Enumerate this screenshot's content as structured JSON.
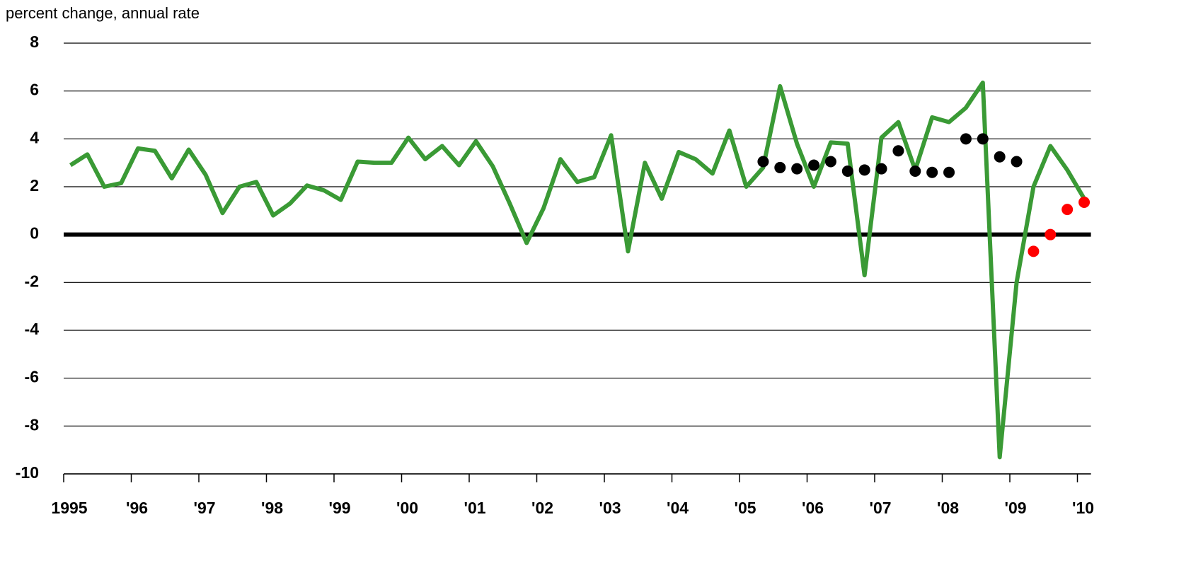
{
  "chart_data": {
    "type": "line",
    "title": "percent change, annual rate",
    "xlim": [
      1995,
      2010.2
    ],
    "ylim": [
      -10,
      8
    ],
    "yticks": [
      -10,
      -8,
      -6,
      -4,
      -2,
      0,
      2,
      4,
      6,
      8
    ],
    "xticks": [
      {
        "value": 1995,
        "label": "1995"
      },
      {
        "value": 1996,
        "label": "'96"
      },
      {
        "value": 1997,
        "label": "'97"
      },
      {
        "value": 1998,
        "label": "'98"
      },
      {
        "value": 1999,
        "label": "'99"
      },
      {
        "value": 2000,
        "label": "'00"
      },
      {
        "value": 2001,
        "label": "'01"
      },
      {
        "value": 2002,
        "label": "'02"
      },
      {
        "value": 2003,
        "label": "'03"
      },
      {
        "value": 2004,
        "label": "'04"
      },
      {
        "value": 2005,
        "label": "'05"
      },
      {
        "value": 2006,
        "label": "'06"
      },
      {
        "value": 2007,
        "label": "'07"
      },
      {
        "value": 2008,
        "label": "'08"
      },
      {
        "value": 2009,
        "label": "'09"
      },
      {
        "value": 2010,
        "label": "'10"
      }
    ],
    "grid": true,
    "series": [
      {
        "color": "#3a9a35",
        "style": "line",
        "x": [
          1995.1,
          1995.35,
          1995.6,
          1995.85,
          1996.1,
          1996.35,
          1996.6,
          1996.85,
          1997.1,
          1997.35,
          1997.6,
          1997.85,
          1998.1,
          1998.35,
          1998.6,
          1998.85,
          1999.1,
          1999.35,
          1999.6,
          1999.85,
          2000.1,
          2000.35,
          2000.6,
          2000.85,
          2001.1,
          2001.35,
          2001.6,
          2001.85,
          2002.1,
          2002.35,
          2002.6,
          2002.85,
          2003.1,
          2003.35,
          2003.6,
          2003.85,
          2004.1,
          2004.35,
          2004.6,
          2004.85,
          2005.1,
          2005.35,
          2005.6,
          2005.85,
          2006.1,
          2006.35,
          2006.6,
          2006.85,
          2007.1,
          2007.35,
          2007.6,
          2007.85,
          2008.1,
          2008.35,
          2008.6,
          2008.85,
          2009.1,
          2009.35,
          2009.6,
          2009.85,
          2010.1
        ],
        "values": [
          2.9,
          3.35,
          2.0,
          2.15,
          3.6,
          3.5,
          2.35,
          3.55,
          2.5,
          0.9,
          2.0,
          2.2,
          0.8,
          1.3,
          2.05,
          1.85,
          1.45,
          3.05,
          3.0,
          3.0,
          4.05,
          3.15,
          3.7,
          2.9,
          3.9,
          2.85,
          1.3,
          -0.35,
          1.1,
          3.15,
          2.2,
          2.4,
          4.15,
          -0.7,
          3.0,
          1.5,
          3.45,
          3.15,
          2.55,
          4.35,
          2.0,
          2.8,
          6.2,
          3.8,
          2.0,
          3.85,
          3.8,
          -1.7,
          4.05,
          4.7,
          2.7,
          4.9,
          4.7,
          5.3,
          6.35,
          -9.3,
          -2.0,
          2.0,
          3.7,
          2.7,
          1.5
        ]
      },
      {
        "color": "#000000",
        "style": "markers",
        "x": [
          2005.35,
          2005.6,
          2005.85,
          2006.1,
          2006.35,
          2006.6,
          2006.85,
          2007.1,
          2007.35,
          2007.6,
          2007.85,
          2008.1,
          2008.35,
          2008.6,
          2008.85,
          2009.1
        ],
        "values": [
          3.05,
          2.8,
          2.75,
          2.9,
          3.05,
          2.65,
          2.7,
          2.75,
          3.5,
          2.65,
          2.6,
          2.6,
          4.0,
          4.0,
          3.25,
          3.05
        ]
      },
      {
        "color": "#ff0000",
        "style": "markers",
        "x": [
          2009.35,
          2009.6,
          2009.85,
          2010.1
        ],
        "values": [
          -0.7,
          0.0,
          1.05,
          1.35
        ]
      }
    ]
  }
}
